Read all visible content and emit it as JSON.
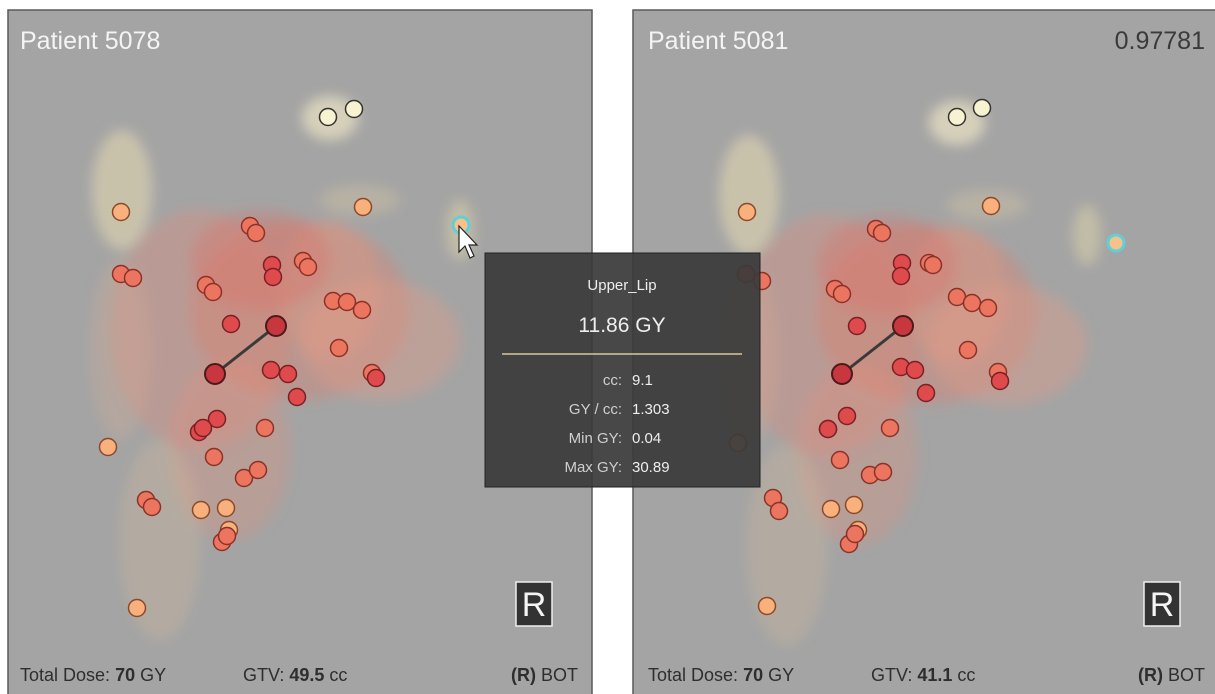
{
  "panels": [
    {
      "title": "Patient 5078",
      "badge": "R",
      "footer": {
        "dose_label": "Total Dose:",
        "dose_value": 70,
        "dose_unit": "GY",
        "gtv_label": "GTV:",
        "gtv_value": 49.5,
        "gtv_unit": "cc",
        "side": "(R)",
        "site": "BOT"
      }
    },
    {
      "title": "Patient 5081",
      "score": 0.97781,
      "badge": "R",
      "footer": {
        "dose_label": "Total Dose:",
        "dose_value": 70,
        "dose_unit": "GY",
        "gtv_label": "GTV:",
        "gtv_value": 41.1,
        "gtv_unit": "cc",
        "side": "(R)",
        "site": "BOT"
      }
    }
  ],
  "tooltip": {
    "organ": "Upper_Lip",
    "dose": 11.86,
    "dose_unit": "GY",
    "rows": [
      {
        "label": "cc:",
        "value": 9.1
      },
      {
        "label": "GY / cc:",
        "value": 1.303
      },
      {
        "label": "Min GY:",
        "value": 0.04
      },
      {
        "label": "Max GY:",
        "value": 30.89
      }
    ]
  }
}
